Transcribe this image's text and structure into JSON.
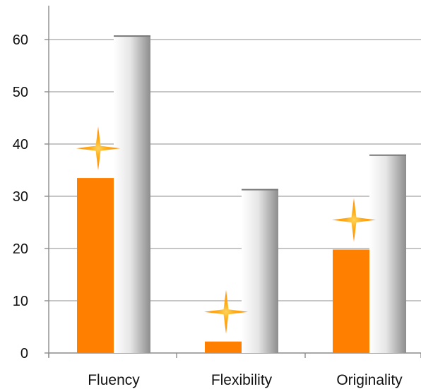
{
  "chart_data": {
    "type": "bar",
    "categories": [
      "Fluency",
      "Flexibility",
      "Originality"
    ],
    "series": [
      {
        "values": [
          33.5,
          2.2,
          19.8
        ],
        "color": "#ff7f00",
        "marker": "four-point-star-icon"
      },
      {
        "values": [
          60.8,
          31.4,
          38.0
        ],
        "color": "#b8b8b8"
      }
    ],
    "ylim": [
      0,
      60
    ],
    "yticks": [
      0,
      10,
      20,
      30,
      40,
      50,
      60
    ],
    "grid": true,
    "legend": "none",
    "colors": {
      "gridline": "#b3b3b3",
      "axis": "#8c8c8c",
      "marker": "#ff9a00"
    }
  }
}
